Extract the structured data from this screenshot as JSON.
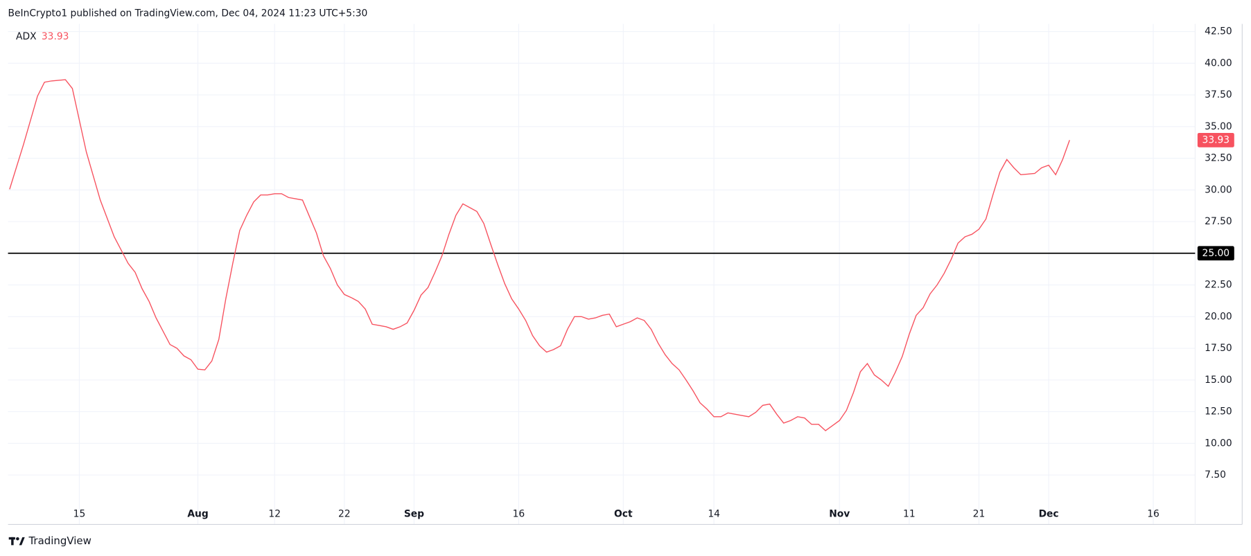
{
  "header": "BeInCrypto1 published on TradingView.com, Dec 04, 2024 11:23 UTC+5:30",
  "footer": "TradingView",
  "chart_data": {
    "type": "line",
    "x": [
      "2024-07-05",
      "2024-07-07",
      "2024-07-09",
      "2024-07-10",
      "2024-07-11",
      "2024-07-13",
      "2024-07-14",
      "2024-07-16",
      "2024-07-18",
      "2024-07-20",
      "2024-07-22",
      "2024-07-23",
      "2024-07-24",
      "2024-07-25",
      "2024-07-26",
      "2024-07-28",
      "2024-07-29",
      "2024-07-30",
      "2024-07-31",
      "2024-08-01",
      "2024-08-02",
      "2024-08-03",
      "2024-08-04",
      "2024-08-05",
      "2024-08-06",
      "2024-08-07",
      "2024-08-08",
      "2024-08-09",
      "2024-08-10",
      "2024-08-11",
      "2024-08-12",
      "2024-08-13",
      "2024-08-14",
      "2024-08-15",
      "2024-08-16",
      "2024-08-17",
      "2024-08-18",
      "2024-08-19",
      "2024-08-20",
      "2024-08-21",
      "2024-08-22",
      "2024-08-23",
      "2024-08-24",
      "2024-08-25",
      "2024-08-26",
      "2024-08-27",
      "2024-08-28",
      "2024-08-29",
      "2024-08-30",
      "2024-08-31",
      "2024-09-01",
      "2024-09-02",
      "2024-09-03",
      "2024-09-04",
      "2024-09-05",
      "2024-09-06",
      "2024-09-07",
      "2024-09-08",
      "2024-09-09",
      "2024-09-10",
      "2024-09-11",
      "2024-09-12",
      "2024-09-13",
      "2024-09-14",
      "2024-09-15",
      "2024-09-16",
      "2024-09-17",
      "2024-09-18",
      "2024-09-19",
      "2024-09-20",
      "2024-09-21",
      "2024-09-22",
      "2024-09-23",
      "2024-09-24",
      "2024-09-25",
      "2024-09-26",
      "2024-09-27",
      "2024-09-28",
      "2024-09-29",
      "2024-09-30",
      "2024-10-01",
      "2024-10-02",
      "2024-10-03",
      "2024-10-04",
      "2024-10-05",
      "2024-10-06",
      "2024-10-07",
      "2024-10-08",
      "2024-10-09",
      "2024-10-10",
      "2024-10-11",
      "2024-10-12",
      "2024-10-13",
      "2024-10-14",
      "2024-10-15",
      "2024-10-16",
      "2024-10-17",
      "2024-10-18",
      "2024-10-19",
      "2024-10-20",
      "2024-10-21",
      "2024-10-22",
      "2024-10-23",
      "2024-10-24",
      "2024-10-25",
      "2024-10-26",
      "2024-10-27",
      "2024-10-28",
      "2024-10-29",
      "2024-10-30",
      "2024-10-31",
      "2024-11-01",
      "2024-11-02",
      "2024-11-03",
      "2024-11-04",
      "2024-11-05",
      "2024-11-06",
      "2024-11-07",
      "2024-11-08",
      "2024-11-09",
      "2024-11-10",
      "2024-11-11",
      "2024-11-12",
      "2024-11-13",
      "2024-11-14",
      "2024-11-15",
      "2024-11-16",
      "2024-11-17",
      "2024-11-18",
      "2024-11-19",
      "2024-11-20",
      "2024-11-21",
      "2024-11-22",
      "2024-11-23",
      "2024-11-24",
      "2024-11-25",
      "2024-11-26",
      "2024-11-27",
      "2024-11-28",
      "2024-11-29",
      "2024-11-30",
      "2024-12-01",
      "2024-12-02",
      "2024-12-03",
      "2024-12-04"
    ],
    "series": [
      {
        "name": "ADX",
        "color": "#f7525f",
        "values": [
          30.05,
          33.6,
          37.4,
          38.5,
          38.6,
          38.7,
          38.0,
          33.0,
          29.2,
          26.3,
          24.2,
          23.5,
          22.2,
          21.2,
          19.9,
          17.8,
          17.5,
          16.9,
          16.6,
          15.85,
          15.8,
          16.5,
          18.2,
          21.4,
          24.2,
          26.8,
          28.0,
          29.05,
          29.6,
          29.6,
          29.7,
          29.7,
          29.4,
          29.3,
          29.2,
          27.9,
          26.6,
          24.8,
          23.8,
          22.5,
          21.75,
          21.5,
          21.2,
          20.6,
          19.4,
          19.3,
          19.2,
          19.0,
          19.2,
          19.5,
          20.5,
          21.7,
          22.3,
          23.5,
          24.8,
          26.5,
          28.0,
          28.9,
          28.6,
          28.3,
          27.35,
          25.7,
          24.1,
          22.6,
          21.4,
          20.6,
          19.7,
          18.5,
          17.7,
          17.2,
          17.4,
          17.7,
          19.0,
          20.0,
          20.0,
          19.8,
          19.9,
          20.1,
          20.2,
          19.2,
          19.4,
          19.6,
          19.9,
          19.7,
          19.0,
          17.9,
          17.0,
          16.3,
          15.8,
          15.0,
          14.15,
          13.2,
          12.7,
          12.1,
          12.1,
          12.4,
          12.3,
          12.2,
          12.1,
          12.45,
          13.0,
          13.1,
          12.3,
          11.6,
          11.8,
          12.1,
          12.0,
          11.5,
          11.5,
          11.0,
          11.4,
          11.8,
          12.6,
          14.0,
          15.65,
          16.3,
          15.4,
          15.0,
          14.5,
          15.6,
          16.85,
          18.6,
          20.1,
          20.7,
          21.8,
          22.5,
          23.4,
          24.5,
          25.8,
          26.3,
          26.5,
          26.9,
          27.7,
          29.6,
          31.4,
          32.4,
          31.75,
          31.2,
          31.25,
          31.3,
          31.75,
          31.95,
          31.2,
          32.4,
          33.93
        ]
      }
    ],
    "xlim": [
      "2024-07-05",
      "2024-12-22"
    ],
    "xticks": [
      {
        "value": "2024-07-15",
        "label": "15"
      },
      {
        "value": "2024-08-01",
        "label": "Aug"
      },
      {
        "value": "2024-08-12",
        "label": "12"
      },
      {
        "value": "2024-08-22",
        "label": "22"
      },
      {
        "value": "2024-09-01",
        "label": "Sep"
      },
      {
        "value": "2024-09-16",
        "label": "16"
      },
      {
        "value": "2024-10-01",
        "label": "Oct"
      },
      {
        "value": "2024-10-14",
        "label": "14"
      },
      {
        "value": "2024-11-01",
        "label": "Nov"
      },
      {
        "value": "2024-11-11",
        "label": "11"
      },
      {
        "value": "2024-11-21",
        "label": "21"
      },
      {
        "value": "2024-12-01",
        "label": "Dec"
      },
      {
        "value": "2024-12-16",
        "label": "16"
      }
    ],
    "ylim": [
      3.6,
      43.1
    ],
    "yticks": [
      {
        "value": 7.5,
        "label": "7.50"
      },
      {
        "value": 10,
        "label": "10.00"
      },
      {
        "value": 12.5,
        "label": "12.50"
      },
      {
        "value": 15,
        "label": "15.00"
      },
      {
        "value": 17.5,
        "label": "17.50"
      },
      {
        "value": 20,
        "label": "20.00"
      },
      {
        "value": 22.5,
        "label": "22.50"
      },
      {
        "value": 25,
        "label": "25.00"
      },
      {
        "value": 27.5,
        "label": "27.50"
      },
      {
        "value": 30,
        "label": "30.00"
      },
      {
        "value": 32.5,
        "label": "32.50"
      },
      {
        "value": 35,
        "label": "35.00"
      },
      {
        "value": 37.5,
        "label": "37.50"
      },
      {
        "value": 40,
        "label": "40.00"
      },
      {
        "value": 42.5,
        "label": "42.50"
      }
    ],
    "hline": {
      "value": 25,
      "label": "25.00",
      "color": "#000000"
    },
    "grid": true
  }
}
